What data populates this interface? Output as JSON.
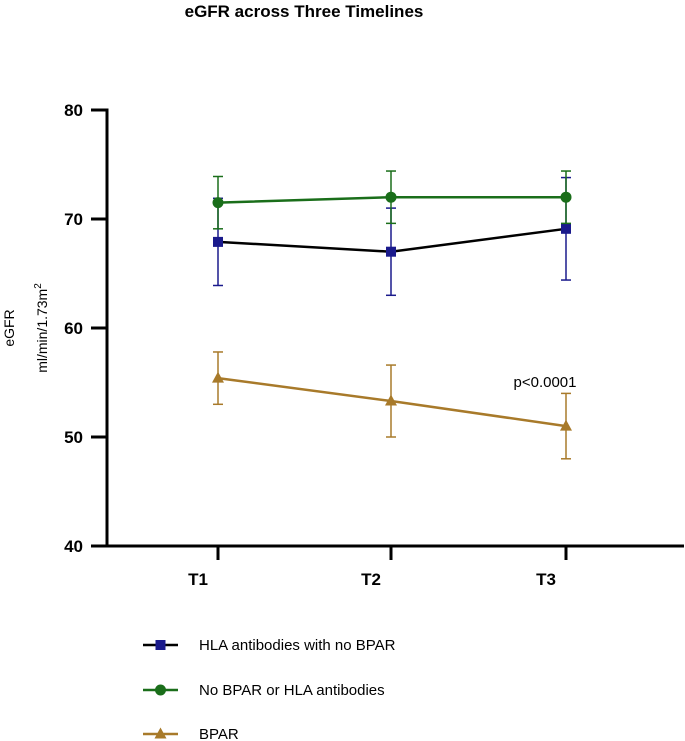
{
  "chart_data": {
    "type": "line",
    "title": "eGFR across Three Timelines",
    "ylabel_line1": "eGFR",
    "ylabel_line2_base": "ml/min/1.73m",
    "ylabel_line2_sup": "2",
    "xlabel": "",
    "categories": [
      "T1",
      "T2",
      "T3"
    ],
    "ylim": [
      40,
      80
    ],
    "yticks": [
      40,
      50,
      60,
      70,
      80
    ],
    "grid": false,
    "legend_position": "bottom",
    "annotation": "p<0.0001",
    "series": [
      {
        "name": "HLA antibodies with no BPAR",
        "marker": "square",
        "line_color": "#000000",
        "marker_color": "#1a1a8c",
        "error_color": "#1a1a8c",
        "values": [
          67.9,
          67.0,
          69.1
        ],
        "error": [
          4.0,
          4.0,
          4.7
        ]
      },
      {
        "name": "No BPAR or HLA antibodies",
        "marker": "circle",
        "line_color": "#1a6e1a",
        "marker_color": "#1a6e1a",
        "error_color": "#1a6e1a",
        "values": [
          71.5,
          72.0,
          72.0
        ],
        "error": [
          2.4,
          2.4,
          2.4
        ]
      },
      {
        "name": "BPAR",
        "marker": "triangle",
        "line_color": "#a87a2a",
        "marker_color": "#a87a2a",
        "error_color": "#a87a2a",
        "values": [
          55.4,
          53.3,
          51.0
        ],
        "error": [
          2.4,
          3.3,
          3.0
        ]
      }
    ]
  }
}
